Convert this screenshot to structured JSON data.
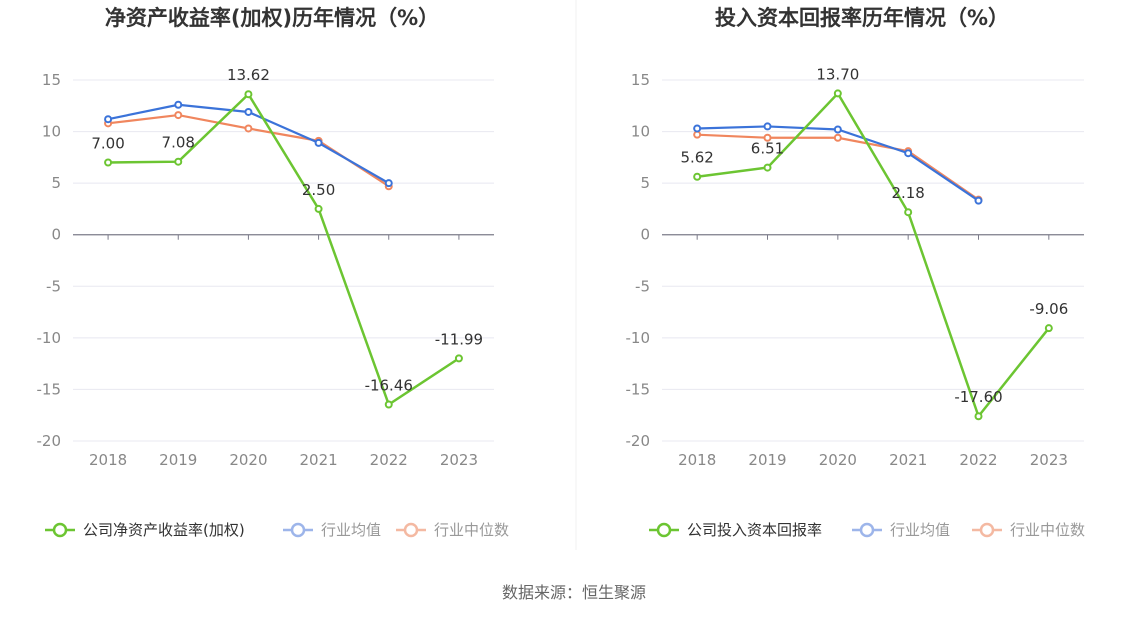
{
  "source": "数据来源：恒生聚源",
  "colors": {
    "company": "#6cc532",
    "avg": "#3b73d9",
    "median": "#f0865e",
    "grid": "#e8e8f0",
    "axis": "#7b7b8a"
  },
  "legend_colors": {
    "company": "#6cc532",
    "avg": "#9db5ea",
    "median": "#f4b9a2"
  },
  "chart_data": [
    {
      "type": "line",
      "title": "净资产收益率(加权)历年情况（%）",
      "categories": [
        "2018",
        "2019",
        "2020",
        "2021",
        "2022",
        "2023"
      ],
      "ylim": [
        -20,
        15
      ],
      "yticks": [
        "15",
        "10",
        "5",
        "0",
        "-5",
        "-10",
        "-15",
        "-20"
      ],
      "grid": true,
      "legend_position": "bottom",
      "series": [
        {
          "name": "公司净资产收益率(加权)",
          "key": "company",
          "values": [
            7.0,
            7.08,
            13.62,
            2.5,
            -16.46,
            -11.99
          ],
          "labels": [
            "7.00",
            "7.08",
            "13.62",
            "2.50",
            "-16.46",
            "-11.99"
          ]
        },
        {
          "name": "行业均值",
          "key": "avg",
          "values": [
            11.2,
            12.6,
            11.9,
            8.9,
            5.0,
            null
          ]
        },
        {
          "name": "行业中位数",
          "key": "median",
          "values": [
            10.8,
            11.6,
            10.3,
            9.1,
            4.7,
            null
          ]
        }
      ]
    },
    {
      "type": "line",
      "title": "投入资本回报率历年情况（%）",
      "categories": [
        "2018",
        "2019",
        "2020",
        "2021",
        "2022",
        "2023"
      ],
      "ylim": [
        -20,
        15
      ],
      "yticks": [
        "15",
        "10",
        "5",
        "0",
        "-5",
        "-10",
        "-15",
        "-20"
      ],
      "grid": true,
      "legend_position": "bottom",
      "series": [
        {
          "name": "公司投入资本回报率",
          "key": "company",
          "values": [
            5.62,
            6.51,
            13.7,
            2.18,
            -17.6,
            -9.06
          ],
          "labels": [
            "5.62",
            "6.51",
            "13.70",
            "2.18",
            "-17.60",
            "-9.06"
          ]
        },
        {
          "name": "行业均值",
          "key": "avg",
          "values": [
            10.3,
            10.5,
            10.2,
            7.9,
            3.3,
            null
          ]
        },
        {
          "name": "行业中位数",
          "key": "median",
          "values": [
            9.7,
            9.4,
            9.4,
            8.1,
            3.4,
            null
          ]
        }
      ]
    }
  ]
}
